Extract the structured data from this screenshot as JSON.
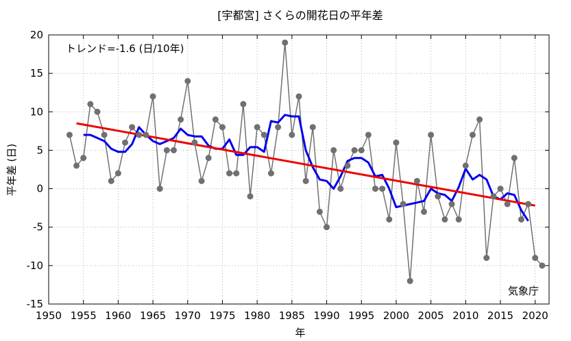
{
  "chart_data": {
    "type": "line",
    "title": "[宇都宮] さくらの開花日の平年差",
    "xlabel": "年",
    "ylabel": "平年差 (日)",
    "trend_label": "トレンド=-1.6 (日/10年)",
    "source": "気象庁",
    "xlim": [
      1950,
      2022
    ],
    "ylim": [
      -15,
      20
    ],
    "x_ticks": [
      1950,
      1955,
      1960,
      1965,
      1970,
      1975,
      1980,
      1985,
      1990,
      1995,
      2000,
      2005,
      2010,
      2015,
      2020
    ],
    "y_ticks": [
      -15,
      -10,
      -5,
      0,
      5,
      10,
      15,
      20
    ],
    "grid": true,
    "colors": {
      "annual": "#707070",
      "moving_average": "#0000ee",
      "trend": "#ee0000"
    },
    "series": [
      {
        "name": "",
        "style": "line-marker",
        "x": [
          1953,
          1954,
          1955,
          1956,
          1957,
          1958,
          1959,
          1960,
          1961,
          1962,
          1963,
          1964,
          1965,
          1966,
          1967,
          1968,
          1969,
          1970,
          1971,
          1972,
          1973,
          1974,
          1975,
          1976,
          1977,
          1978,
          1979,
          1980,
          1981,
          1982,
          1983,
          1984,
          1985,
          1986,
          1987,
          1988,
          1989,
          1990,
          1991,
          1992,
          1993,
          1994,
          1995,
          1996,
          1997,
          1998,
          1999,
          2000,
          2001,
          2002,
          2003,
          2004,
          2005,
          2006,
          2007,
          2008,
          2009,
          2010,
          2011,
          2012,
          2013,
          2014,
          2015,
          2016,
          2017,
          2018,
          2019,
          2020,
          2021
        ],
        "y": [
          7,
          3,
          4,
          11,
          10,
          7,
          1,
          2,
          6,
          8,
          7,
          7,
          12,
          0,
          5,
          5,
          9,
          14,
          6,
          1,
          4,
          9,
          8,
          2,
          2,
          11,
          -1,
          8,
          7,
          2,
          8,
          19,
          7,
          12,
          1,
          8,
          -3,
          -5,
          5,
          0,
          3,
          5,
          5,
          7,
          0,
          0,
          -4,
          6,
          -2,
          -12,
          1,
          -3,
          7,
          -1,
          -4,
          -2,
          -4,
          3,
          7,
          9,
          -9,
          -1,
          0,
          -2,
          4,
          -4,
          -2,
          -9,
          -10
        ]
      },
      {
        "name": "",
        "style": "line",
        "x": [
          1955,
          1956,
          1957,
          1958,
          1959,
          1960,
          1961,
          1962,
          1963,
          1964,
          1965,
          1966,
          1967,
          1968,
          1969,
          1970,
          1971,
          1972,
          1973,
          1974,
          1975,
          1976,
          1977,
          1978,
          1979,
          1980,
          1981,
          1982,
          1983,
          1984,
          1985,
          1986,
          1987,
          1988,
          1989,
          1990,
          1991,
          1992,
          1993,
          1994,
          1995,
          1996,
          1997,
          1998,
          1999,
          2000,
          2001,
          2002,
          2003,
          2004,
          2005,
          2006,
          2007,
          2008,
          2009,
          2010,
          2011,
          2012,
          2013,
          2014,
          2015,
          2016,
          2017,
          2018,
          2019
        ],
        "y": [
          7,
          7,
          6.6,
          6.2,
          5.2,
          4.8,
          4.8,
          5.8,
          8,
          7,
          6.2,
          5.8,
          6.2,
          6.6,
          7.8,
          7,
          6.8,
          6.8,
          5.6,
          5.2,
          5.2,
          6.4,
          4.4,
          4.4,
          5.4,
          5.4,
          4.8,
          8.8,
          8.6,
          9.6,
          9.4,
          9.4,
          5,
          2.8,
          1.2,
          1,
          0,
          1.6,
          3.6,
          4,
          4,
          3.4,
          1.6,
          1.8,
          0,
          -2.4,
          -2.2,
          -2,
          -1.8,
          -1.6,
          0,
          -0.6,
          -0.8,
          -1.6,
          0.2,
          2.6,
          1.2,
          1.8,
          1.2,
          -1,
          -1.4,
          -0.6,
          -0.8,
          -2.8,
          -4.2
        ]
      },
      {
        "name": "",
        "style": "trend",
        "x": [
          1954,
          2020
        ],
        "y": [
          8.5,
          -2.2
        ]
      }
    ]
  }
}
